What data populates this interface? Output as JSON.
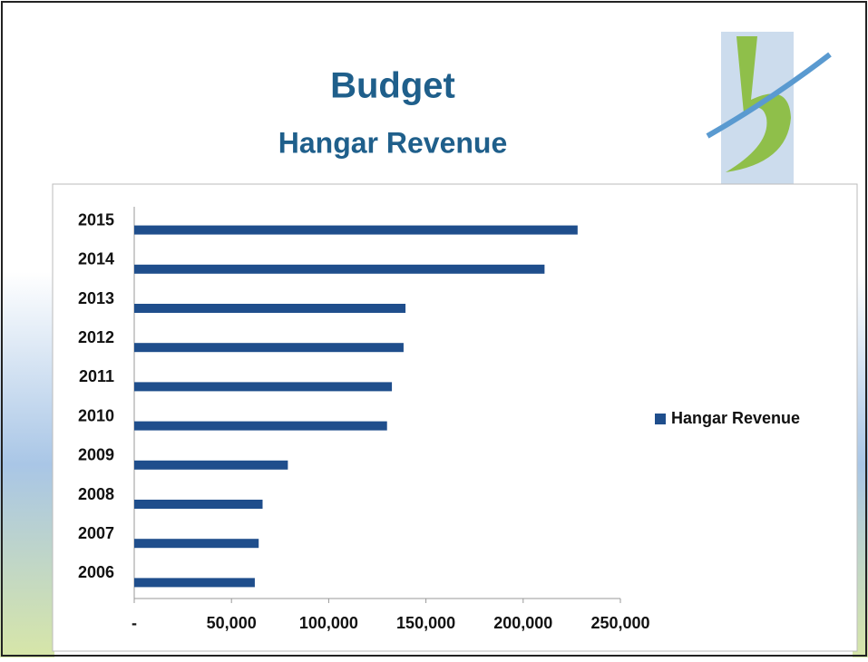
{
  "chart_data": {
    "type": "bar",
    "orientation": "horizontal",
    "title": "Budget",
    "subtitle": "Hangar Revenue",
    "categories": [
      "2015",
      "2014",
      "2013",
      "2012",
      "2011",
      "2010",
      "2009",
      "2008",
      "2007",
      "2006"
    ],
    "series": [
      {
        "name": "Hangar Revenue",
        "color": "#1f4e8c",
        "values": [
          228000,
          211000,
          139500,
          138500,
          132500,
          130000,
          79000,
          66000,
          64000,
          62000
        ]
      }
    ],
    "xlim": [
      0,
      250000
    ],
    "xticks": [
      {
        "value": 0,
        "label": "-"
      },
      {
        "value": 50000,
        "label": "50,000"
      },
      {
        "value": 100000,
        "label": "100,000"
      },
      {
        "value": 150000,
        "label": "150,000"
      },
      {
        "value": 200000,
        "label": "200,000"
      },
      {
        "value": 250000,
        "label": "250,000"
      }
    ],
    "legend": "right"
  }
}
